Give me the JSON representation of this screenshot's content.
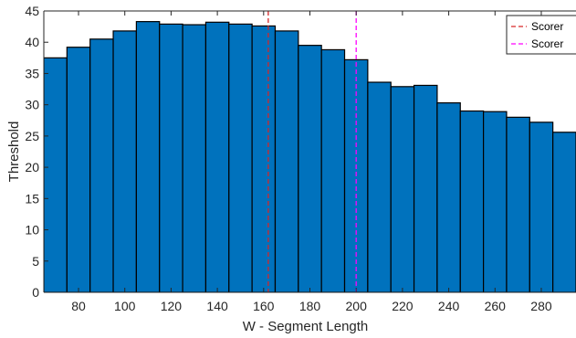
{
  "chart_data": {
    "type": "bar",
    "title": "",
    "xlabel": "W - Segment Length",
    "ylabel": "Threshold",
    "xlim": [
      65,
      295
    ],
    "ylim": [
      0,
      45
    ],
    "x_ticks": [
      80,
      100,
      120,
      140,
      160,
      180,
      200,
      220,
      240,
      260,
      280
    ],
    "y_ticks": [
      0,
      5,
      10,
      15,
      20,
      25,
      30,
      35,
      40,
      45
    ],
    "bin_width": 10,
    "bin_centers": [
      70,
      80,
      90,
      100,
      110,
      120,
      130,
      140,
      150,
      160,
      170,
      180,
      190,
      200,
      210,
      220,
      230,
      240,
      250,
      260,
      270,
      280,
      290
    ],
    "values": [
      37.5,
      39.2,
      40.5,
      41.8,
      43.3,
      42.9,
      42.8,
      43.2,
      42.9,
      42.6,
      41.8,
      39.5,
      38.8,
      37.2,
      33.6,
      32.9,
      33.1,
      30.3,
      29.0,
      28.9,
      28.0,
      27.2,
      25.6
    ],
    "bar_color": "#0072BD",
    "grid": false,
    "reference_lines": [
      {
        "name": "Scorer",
        "x": 162,
        "color": "#D62728",
        "style": "dashed"
      },
      {
        "name": "Scorer",
        "x": 200,
        "color": "#FF00FF",
        "style": "dashed"
      }
    ],
    "legend": {
      "placement": "top-right",
      "entries": [
        "Scorer",
        "Scorer"
      ]
    }
  }
}
